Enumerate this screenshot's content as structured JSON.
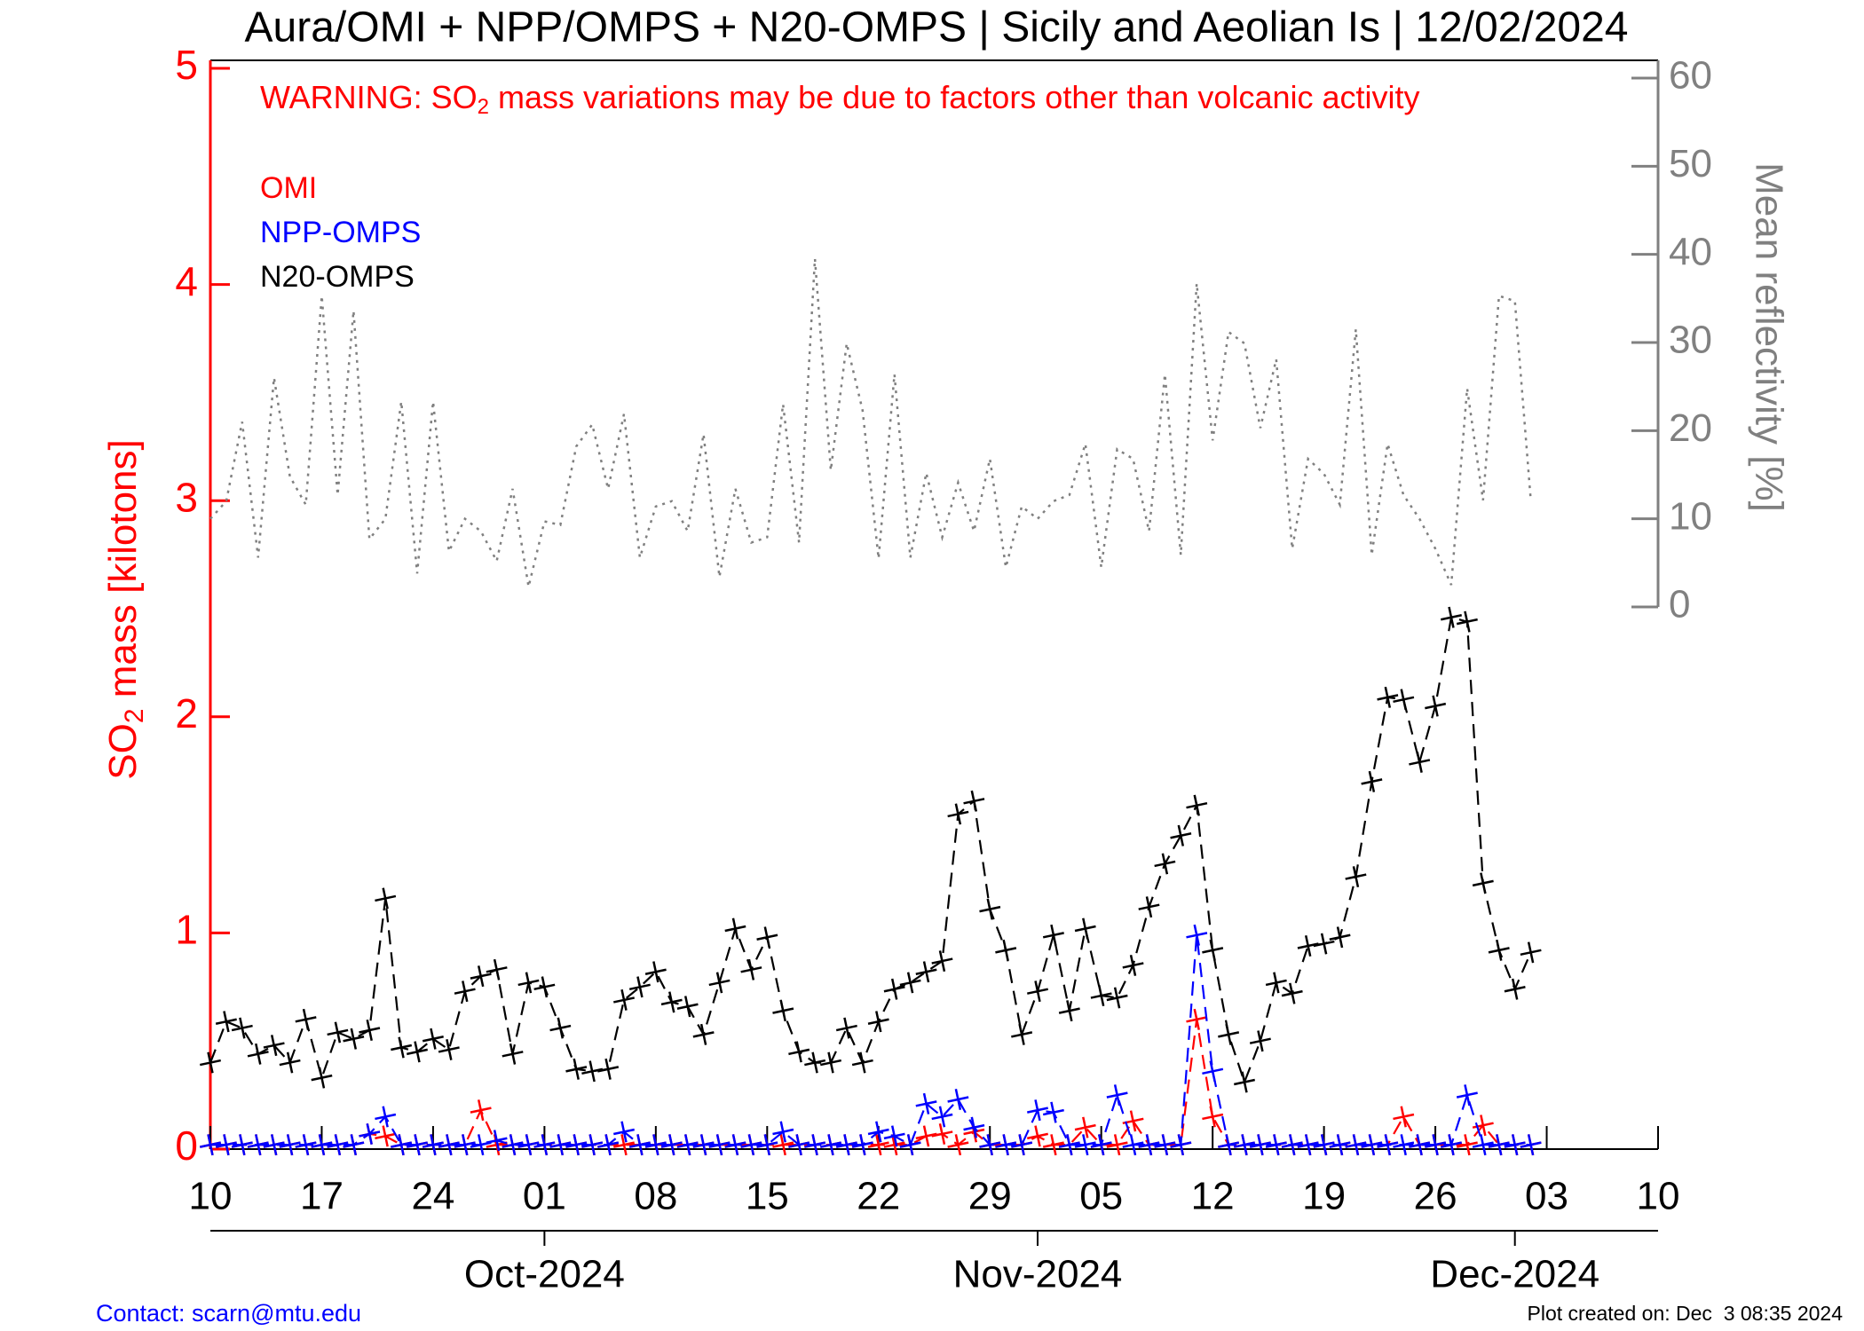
{
  "chart_data": {
    "type": "line",
    "title": "Aura/OMI + NPP/OMPS + N20-OMPS | Sicily and Aeolian Is | 12/02/2024",
    "annotation": [
      "WARNING: SO",
      "2",
      " mass variations may be due to factors other than volcanic activity"
    ],
    "y_label": [
      "SO",
      "2",
      " mass [kilotons]"
    ],
    "y2_label": "Mean reflectivity [%]",
    "footer_left": "Contact: scarn@mtu.edu",
    "footer_right": "Plot created on: Dec  3 08:35 2024",
    "legend": "upper left",
    "ycolor": "#ff0000",
    "y2color": "#808080",
    "x": [
      "2024-09-10",
      "2024-09-11",
      "2024-09-12",
      "2024-09-13",
      "2024-09-14",
      "2024-09-15",
      "2024-09-16",
      "2024-09-17",
      "2024-09-18",
      "2024-09-19",
      "2024-09-20",
      "2024-09-21",
      "2024-09-22",
      "2024-09-23",
      "2024-09-24",
      "2024-09-25",
      "2024-09-26",
      "2024-09-27",
      "2024-09-28",
      "2024-09-29",
      "2024-09-30",
      "2024-10-01",
      "2024-10-02",
      "2024-10-03",
      "2024-10-04",
      "2024-10-05",
      "2024-10-06",
      "2024-10-07",
      "2024-10-08",
      "2024-10-09",
      "2024-10-10",
      "2024-10-11",
      "2024-10-12",
      "2024-10-13",
      "2024-10-14",
      "2024-10-15",
      "2024-10-16",
      "2024-10-17",
      "2024-10-18",
      "2024-10-19",
      "2024-10-20",
      "2024-10-21",
      "2024-10-22",
      "2024-10-23",
      "2024-10-24",
      "2024-10-25",
      "2024-10-26",
      "2024-10-27",
      "2024-10-28",
      "2024-10-29",
      "2024-10-30",
      "2024-10-31",
      "2024-11-01",
      "2024-11-02",
      "2024-11-03",
      "2024-11-04",
      "2024-11-05",
      "2024-11-06",
      "2024-11-07",
      "2024-11-08",
      "2024-11-09",
      "2024-11-10",
      "2024-11-11",
      "2024-11-12",
      "2024-11-13",
      "2024-11-14",
      "2024-11-15",
      "2024-11-16",
      "2024-11-17",
      "2024-11-18",
      "2024-11-19",
      "2024-11-20",
      "2024-11-21",
      "2024-11-22",
      "2024-11-23",
      "2024-11-24",
      "2024-11-25",
      "2024-11-26",
      "2024-11-27",
      "2024-11-28",
      "2024-11-29",
      "2024-11-30",
      "2024-12-01",
      "2024-12-02"
    ],
    "xlim": [
      "2024-09-10",
      "2024-12-10"
    ],
    "xticks": [
      {
        "value": "2024-09-10",
        "label": "10"
      },
      {
        "value": "2024-09-17",
        "label": "17"
      },
      {
        "value": "2024-09-24",
        "label": "24"
      },
      {
        "value": "2024-10-01",
        "label": "01"
      },
      {
        "value": "2024-10-08",
        "label": "08"
      },
      {
        "value": "2024-10-15",
        "label": "15"
      },
      {
        "value": "2024-10-22",
        "label": "22"
      },
      {
        "value": "2024-10-29",
        "label": "29"
      },
      {
        "value": "2024-11-05",
        "label": "05"
      },
      {
        "value": "2024-11-12",
        "label": "12"
      },
      {
        "value": "2024-11-19",
        "label": "19"
      },
      {
        "value": "2024-11-26",
        "label": "26"
      },
      {
        "value": "2024-12-03",
        "label": "03"
      },
      {
        "value": "2024-12-10",
        "label": "10"
      }
    ],
    "month_ticks": [
      {
        "value": "2024-10-01",
        "label": "Oct-2024"
      },
      {
        "value": "2024-11-01",
        "label": "Nov-2024"
      },
      {
        "value": "2024-12-01",
        "label": "Dec-2024"
      }
    ],
    "ylim": [
      0,
      5
    ],
    "yticks": [
      0,
      1,
      2,
      3,
      4,
      5
    ],
    "y2lim": [
      0,
      60
    ],
    "y2ticks": [
      0,
      10,
      20,
      30,
      40,
      50,
      60
    ],
    "series": [
      {
        "name": "OMI",
        "color": "#ff0000",
        "linestyle": "dashed",
        "markers": true,
        "values": [
          0.02,
          0.02,
          0.02,
          0.02,
          0.02,
          0.02,
          0.02,
          0.02,
          0.02,
          0.02,
          0.07,
          0.06,
          0.02,
          0.02,
          0.02,
          0.02,
          0.02,
          0.18,
          0.02,
          0.02,
          0.02,
          0.02,
          0.02,
          0.02,
          0.02,
          0.02,
          0.02,
          0.02,
          0.02,
          0.02,
          0.02,
          0.02,
          0.02,
          0.02,
          0.02,
          0.02,
          0.02,
          0.02,
          0.02,
          0.02,
          0.02,
          0.02,
          0.02,
          0.02,
          0.02,
          0.06,
          0.07,
          0.02,
          0.08,
          0.02,
          0.02,
          0.02,
          0.06,
          0.02,
          0.02,
          0.1,
          0.02,
          0.02,
          0.13,
          0.02,
          0.02,
          0.02,
          0.6,
          0.15,
          0.02,
          0.02,
          0.02,
          0.02,
          0.02,
          0.02,
          0.02,
          0.02,
          0.02,
          0.02,
          0.02,
          0.15,
          0.02,
          0.02,
          0.02,
          0.02,
          0.11,
          0.02,
          0.02,
          0.02
        ]
      },
      {
        "name": "NPP-OMPS",
        "color": "#0000ff",
        "linestyle": "dashed",
        "markers": true,
        "values": [
          0.02,
          0.02,
          0.02,
          0.02,
          0.02,
          0.02,
          0.02,
          0.02,
          0.02,
          0.02,
          0.07,
          0.15,
          0.02,
          0.02,
          0.02,
          0.02,
          0.02,
          0.02,
          0.04,
          0.02,
          0.02,
          0.02,
          0.02,
          0.02,
          0.02,
          0.02,
          0.08,
          0.02,
          0.02,
          0.02,
          0.02,
          0.02,
          0.02,
          0.02,
          0.02,
          0.02,
          0.08,
          0.02,
          0.02,
          0.02,
          0.02,
          0.02,
          0.08,
          0.06,
          0.02,
          0.21,
          0.15,
          0.23,
          0.1,
          0.02,
          0.02,
          0.02,
          0.18,
          0.17,
          0.02,
          0.02,
          0.02,
          0.25,
          0.02,
          0.02,
          0.02,
          0.02,
          0.99,
          0.36,
          0.02,
          0.02,
          0.02,
          0.02,
          0.02,
          0.02,
          0.02,
          0.02,
          0.02,
          0.02,
          0.02,
          0.02,
          0.02,
          0.02,
          0.02,
          0.25,
          0.02,
          0.02,
          0.02,
          0.02
        ]
      },
      {
        "name": "N20-OMPS",
        "color": "#000000",
        "linestyle": "dashed",
        "markers": true,
        "values": [
          0.4,
          0.59,
          0.56,
          0.44,
          0.48,
          0.4,
          0.6,
          0.33,
          0.54,
          0.51,
          0.55,
          1.16,
          0.47,
          0.45,
          0.51,
          0.46,
          0.73,
          0.8,
          0.83,
          0.44,
          0.77,
          0.75,
          0.56,
          0.37,
          0.36,
          0.37,
          0.69,
          0.75,
          0.82,
          0.68,
          0.66,
          0.53,
          0.77,
          1.02,
          0.83,
          0.98,
          0.64,
          0.45,
          0.4,
          0.4,
          0.56,
          0.4,
          0.59,
          0.74,
          0.77,
          0.82,
          0.87,
          1.55,
          1.61,
          1.11,
          0.92,
          0.53,
          0.73,
          0.99,
          0.64,
          1.02,
          0.71,
          0.7,
          0.85,
          1.12,
          1.32,
          1.45,
          1.59,
          0.92,
          0.53,
          0.31,
          0.5,
          0.77,
          0.72,
          0.94,
          0.95,
          0.98,
          1.26,
          1.7,
          2.09,
          2.08,
          1.79,
          2.05,
          2.46,
          2.44,
          1.23,
          0.92,
          0.74,
          0.91
        ]
      },
      {
        "color": "#808080",
        "linestyle": "dotted",
        "markers": false,
        "axis": "y2",
        "values": [
          10,
          12,
          21,
          5.6,
          26,
          14.8,
          11.6,
          35.3,
          12.7,
          33.6,
          7.7,
          10,
          23.3,
          3.8,
          23.3,
          6.3,
          10,
          8.6,
          5.2,
          13.4,
          2.3,
          9.7,
          9.3,
          18.2,
          20.7,
          13.4,
          21.9,
          5.6,
          11.4,
          12,
          8.6,
          19.6,
          3.4,
          13.4,
          7.3,
          7.9,
          23,
          7.3,
          39.5,
          15.5,
          29.9,
          22.3,
          5.5,
          26.4,
          5.6,
          15.2,
          7.9,
          14.1,
          8.6,
          16.8,
          4.5,
          11.4,
          10,
          12,
          12.7,
          18.5,
          4.5,
          17.9,
          16.8,
          8.6,
          26.4,
          5.9,
          36.7,
          18.9,
          31.2,
          29.9,
          20.3,
          28.1,
          6.6,
          16.8,
          15.1,
          11.6,
          31.5,
          5.9,
          18.5,
          12.7,
          10,
          6.6,
          2.5,
          24.8,
          12.1,
          35.3,
          34.7,
          12.1
        ]
      }
    ]
  }
}
